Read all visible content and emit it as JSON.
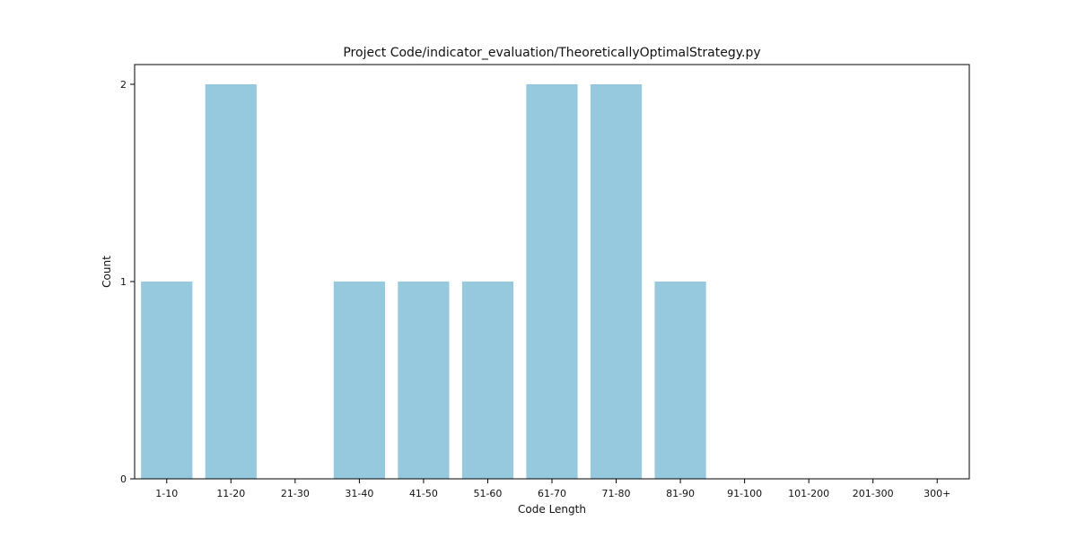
{
  "chart_data": {
    "type": "bar",
    "title": "Project Code/indicator_evaluation/TheoreticallyOptimalStrategy.py",
    "xlabel": "Code Length",
    "ylabel": "Count",
    "categories": [
      "1-10",
      "11-20",
      "21-30",
      "31-40",
      "41-50",
      "51-60",
      "61-70",
      "71-80",
      "81-90",
      "91-100",
      "101-200",
      "201-300",
      "300+"
    ],
    "values": [
      1,
      2,
      0,
      1,
      1,
      1,
      2,
      2,
      1,
      0,
      0,
      0,
      0
    ],
    "ylim": [
      0,
      2.1
    ],
    "yticks": [
      0,
      1,
      2
    ],
    "bar_color": "#96c9de",
    "grid": false,
    "legend": "none"
  }
}
